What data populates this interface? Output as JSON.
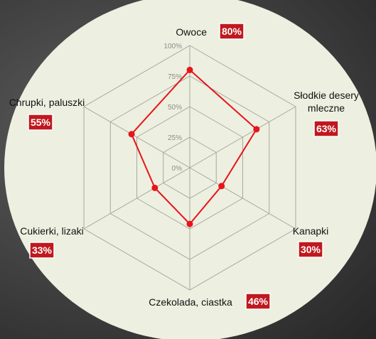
{
  "chart_data": {
    "type": "radar",
    "categories": [
      "Owoce",
      "Słodkie desery mleczne",
      "Kanapki",
      "Czekolada, ciastka",
      "Cukierki, lizaki",
      "Chrupki, paluszki"
    ],
    "category_lines": [
      [
        "Owoce"
      ],
      [
        "Słodkie desery",
        "mleczne"
      ],
      [
        "Kanapki"
      ],
      [
        "Czekolada, ciastka"
      ],
      [
        "Cukierki, lizaki"
      ],
      [
        "Chrupki, paluszki"
      ]
    ],
    "values": [
      80,
      63,
      30,
      46,
      33,
      55
    ],
    "value_labels": [
      "80%",
      "63%",
      "30%",
      "46%",
      "33%",
      "55%"
    ],
    "scale_labels": [
      "0%",
      "25%",
      "50%",
      "75%",
      "100%"
    ],
    "ylim": [
      0,
      100
    ],
    "grid": true,
    "legend": "none",
    "colors": {
      "series": "#e8141c",
      "badge": "#c0181e",
      "badge_border": "#ffffff",
      "panel": "#edf0e0",
      "grid": "#a6a9a0",
      "scale_text": "#8c8c8c",
      "label_text": "#111111"
    }
  }
}
